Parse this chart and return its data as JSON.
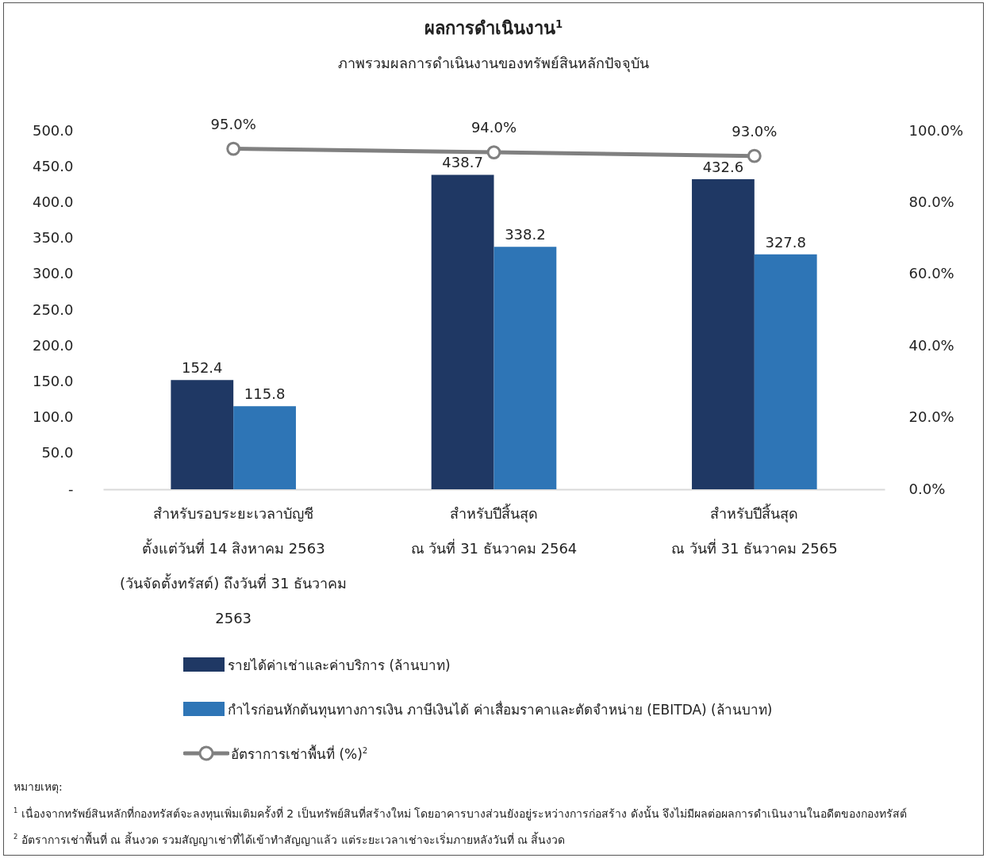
{
  "chart_data": {
    "type": "bar",
    "title": "ผลการดำเนินงาน$^{1}$",
    "subtitle": "ภาพรวมผลการดำเนินงานของทรัพย์สินหลักปัจจุบัน",
    "categories": [
      "สำหรับรอบระยะเวลาบัญชี\nตั้งแต่วันที่ 14 สิงหาคม 2563\n(วันจัดตั้งทรัสต์) ถึงวันที่ 31 ธันวาคม\n2563",
      "สำหรับปีสิ้นสุด\nณ วันที่ 31 ธันวาคม 2564",
      "สำหรับปีสิ้นสุด\nณ วันที่ 31 ธันวาคม 2565"
    ],
    "series": [
      {
        "name": "รายได้ค่าเช่าและค่าบริการ (ล้านบาท)",
        "color": "#1f3864",
        "values": [
          152.4,
          438.7,
          432.6
        ],
        "value_labels": [
          "152.4",
          "438.7",
          "432.6"
        ]
      },
      {
        "name": "กำไรก่อนหักต้นทุนทางการเงิน ภาษีเงินได้ ค่าเสื่อมราคาและตัดจำหน่าย (EBITDA) (ล้านบาท)",
        "color": "#2e75b6",
        "values": [
          115.8,
          338.2,
          327.8
        ],
        "value_labels": [
          "115.8",
          "338.2",
          "327.8"
        ]
      },
      {
        "name": "อัตราการเช่าพื้นที่ (%)$^{2}$",
        "type": "line",
        "axis": "y2",
        "color": "#808080",
        "marker": "circle",
        "values": [
          95.0,
          94.0,
          93.0
        ],
        "value_labels": [
          "95.0%",
          "94.0%",
          "93.0%"
        ]
      }
    ],
    "ylim": [
      0,
      500
    ],
    "yticks": [
      {
        "value": 0,
        "label": "-"
      },
      {
        "value": 50,
        "label": "50.0"
      },
      {
        "value": 100,
        "label": "100.0"
      },
      {
        "value": 150,
        "label": "150.0"
      },
      {
        "value": 200,
        "label": "200.0"
      },
      {
        "value": 250,
        "label": "250.0"
      },
      {
        "value": 300,
        "label": "300.0"
      },
      {
        "value": 350,
        "label": "350.0"
      },
      {
        "value": 400,
        "label": "400.0"
      },
      {
        "value": 450,
        "label": "450.0"
      },
      {
        "value": 500,
        "label": "500.0"
      }
    ],
    "y2lim": [
      0,
      100
    ],
    "y2ticks": [
      {
        "value": 0,
        "label": "0.0%"
      },
      {
        "value": 20,
        "label": "20.0%"
      },
      {
        "value": 40,
        "label": "40.0%"
      },
      {
        "value": 60,
        "label": "60.0%"
      },
      {
        "value": 80,
        "label": "80.0%"
      },
      {
        "value": 100,
        "label": "100.0%"
      }
    ],
    "legend": "bottom",
    "grid": false,
    "annotations": [
      "หมายเหตุ:",
      "$^{1}$ เนื่องจากทรัพย์สินหลักที่กองทรัสต์จะลงทุนเพิ่มเติมครั้งที่ 2 เป็นทรัพย์สินที่สร้างใหม่ โดยอาคารบางส่วนยังอยู่ระหว่างการก่อสร้าง ดังนั้น จึงไม่มีผลต่อผลการดำเนินงานในอดีตของกองทรัสต์",
      "$^{2}$ อัตราการเช่าพื้นที่ ณ สิ้นงวด รวมสัญญาเช่าที่ได้เข้าทำสัญญาแล้ว แต่ระยะเวลาเช่าจะเริ่มภายหลังวันที่ ณ สิ้นงวด"
    ]
  }
}
